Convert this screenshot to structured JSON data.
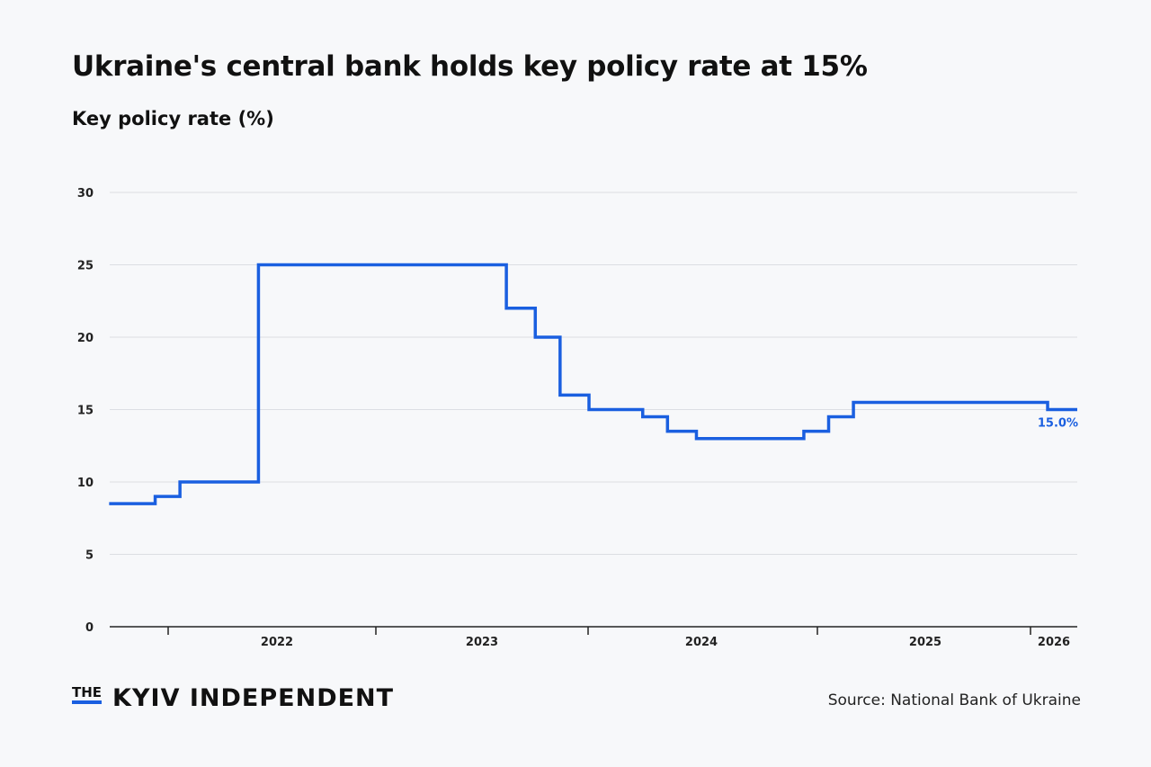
{
  "title": "Ukraine's central bank holds key policy rate at 15%",
  "subtitle": "Key policy rate (%)",
  "source": "Source: National Bank of Ukraine",
  "logo": {
    "the": "THE",
    "name": "KYIV INDEPENDENT"
  },
  "colors": {
    "line": "#1a5fe0",
    "grid": "#dcdee3",
    "axis": "#222222",
    "background": "#f7f8fa"
  },
  "chart_data": {
    "type": "line",
    "step": true,
    "ylim": [
      0,
      30
    ],
    "yticks": [
      "0",
      "5",
      "10",
      "15",
      "20",
      "25",
      "30"
    ],
    "xticks": [
      "2022",
      "2023",
      "2024",
      "2025",
      "2026"
    ],
    "grid": true,
    "end_label": "15.0%",
    "series": [
      {
        "points": [
          {
            "date": "2021-09-23",
            "value": 8.5
          },
          {
            "date": "2021-12-10",
            "value": 9
          },
          {
            "date": "2022-01-21",
            "value": 10
          },
          {
            "date": "2022-06-03",
            "value": 25
          },
          {
            "date": "2023-07-28",
            "value": 22
          },
          {
            "date": "2023-09-15",
            "value": 20
          },
          {
            "date": "2023-10-27",
            "value": 16
          },
          {
            "date": "2023-12-15",
            "value": 15
          },
          {
            "date": "2024-03-15",
            "value": 14.5
          },
          {
            "date": "2024-04-26",
            "value": 13.5
          },
          {
            "date": "2024-06-14",
            "value": 13
          },
          {
            "date": "2024-12-13",
            "value": 13.5
          },
          {
            "date": "2025-01-24",
            "value": 14.5
          },
          {
            "date": "2025-03-07",
            "value": 15.5
          },
          {
            "date": "2026-01-30",
            "value": 15
          },
          {
            "date": "2026-03-15",
            "value": 15
          }
        ]
      }
    ]
  }
}
